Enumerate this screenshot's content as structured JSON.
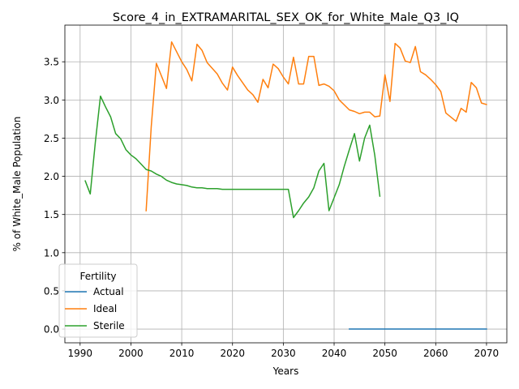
{
  "chart_data": {
    "type": "line",
    "title": "Score_4_in_EXTRAMARITAL_SEX_OK_for_White_Male_Q3_IQ",
    "xlabel": "Years",
    "ylabel": "% of White_Male Population",
    "xlim": [
      1987,
      2074
    ],
    "ylim": [
      -0.18,
      3.98
    ],
    "xticks": [
      1990,
      2000,
      2010,
      2020,
      2030,
      2040,
      2050,
      2060,
      2070
    ],
    "yticks": [
      0.0,
      0.5,
      1.0,
      1.5,
      2.0,
      2.5,
      3.0,
      3.5
    ],
    "grid": true,
    "legend": {
      "title": "Fertility",
      "placement": "lower-left"
    },
    "series": [
      {
        "name": "Actual",
        "color": "#1f77b4",
        "x": [
          2043,
          2070
        ],
        "y": [
          0.0,
          0.0
        ]
      },
      {
        "name": "Ideal",
        "color": "#ff7f0e",
        "x": [
          2003,
          2004,
          2005,
          2007,
          2008,
          2010,
          2011,
          2012,
          2013,
          2014,
          2015,
          2017,
          2018,
          2019,
          2020,
          2021,
          2023,
          2024,
          2025,
          2026,
          2027,
          2028,
          2029,
          2030,
          2031,
          2032,
          2033,
          2034,
          2035,
          2036,
          2037,
          2038,
          2039,
          2040,
          2041,
          2043,
          2044,
          2045,
          2046,
          2047,
          2048,
          2049,
          2050,
          2051,
          2052,
          2053,
          2054,
          2055,
          2056,
          2057,
          2058,
          2059,
          2060,
          2061,
          2062,
          2064,
          2065,
          2066,
          2067,
          2068,
          2069,
          2070
        ],
        "y": [
          1.55,
          2.65,
          3.48,
          3.15,
          3.76,
          3.5,
          3.4,
          3.25,
          3.73,
          3.65,
          3.49,
          3.34,
          3.22,
          3.13,
          3.43,
          3.32,
          3.13,
          3.07,
          2.97,
          3.27,
          3.16,
          3.47,
          3.41,
          3.3,
          3.21,
          3.56,
          3.21,
          3.21,
          3.57,
          3.57,
          3.19,
          3.21,
          3.18,
          3.12,
          3.0,
          2.87,
          2.85,
          2.82,
          2.84,
          2.84,
          2.78,
          2.79,
          3.33,
          2.98,
          3.74,
          3.68,
          3.51,
          3.49,
          3.7,
          3.37,
          3.33,
          3.27,
          3.2,
          3.11,
          2.83,
          2.72,
          2.89,
          2.84,
          3.23,
          3.16,
          2.96,
          2.94
        ]
      },
      {
        "name": "Sterile",
        "color": "#2ca02c",
        "x": [
          1991,
          1992,
          1993,
          1994,
          1995,
          1996,
          1997,
          1998,
          1999,
          2000,
          2001,
          2002,
          2003,
          2004,
          2005,
          2006,
          2007,
          2008,
          2009,
          2010,
          2011,
          2012,
          2013,
          2014,
          2015,
          2016,
          2017,
          2018,
          2019,
          2020,
          2025,
          2030,
          2031,
          2032,
          2033,
          2034,
          2035,
          2036,
          2037,
          2038,
          2039,
          2040,
          2041,
          2042,
          2043,
          2044,
          2045,
          2046,
          2047,
          2048,
          2049
        ],
        "y": [
          1.94,
          1.77,
          2.45,
          3.05,
          2.91,
          2.78,
          2.56,
          2.49,
          2.35,
          2.28,
          2.23,
          2.16,
          2.09,
          2.07,
          2.03,
          2.0,
          1.95,
          1.92,
          1.9,
          1.89,
          1.88,
          1.86,
          1.85,
          1.85,
          1.84,
          1.84,
          1.84,
          1.83,
          1.83,
          1.83,
          1.83,
          1.83,
          1.83,
          1.46,
          1.55,
          1.65,
          1.73,
          1.85,
          2.07,
          2.17,
          1.55,
          1.72,
          1.89,
          2.13,
          2.35,
          2.56,
          2.2,
          2.5,
          2.67,
          2.28,
          1.74
        ]
      }
    ]
  }
}
